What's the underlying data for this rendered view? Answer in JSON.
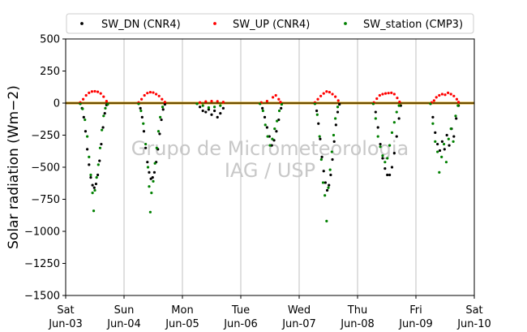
{
  "chart_data": {
    "type": "scatter",
    "title": "",
    "xlabel": "",
    "ylabel": "Solar radiation (Wm−2)",
    "ylim": [
      -1500,
      500
    ],
    "yticks": [
      -1500,
      -1250,
      -1000,
      -750,
      -500,
      -250,
      0,
      250,
      500
    ],
    "ytick_labels": [
      "−1500",
      "−1250",
      "−1000",
      "−750",
      "−500",
      "−250",
      "0",
      "250",
      "500"
    ],
    "xlim": [
      0,
      7
    ],
    "xticks": [
      0,
      1,
      2,
      3,
      4,
      5,
      6,
      7
    ],
    "xtick_labels": [
      [
        "Sat",
        "Jun-03"
      ],
      [
        "Sun",
        "Jun-04"
      ],
      [
        "Mon",
        "Jun-05"
      ],
      [
        "Tue",
        "Jun-06"
      ],
      [
        "Wed",
        "Jun-07"
      ],
      [
        "Thu",
        "Jun-08"
      ],
      [
        "Fri",
        "Jun-09"
      ],
      [
        "Sat",
        "Jun-10"
      ]
    ],
    "grid_x": true,
    "zero_line": 0,
    "legend_position": "top",
    "watermark": [
      "Grupo de Micrometeorologia",
      "IAG / USP"
    ],
    "series": [
      {
        "name": "SW_DN (CNR4)",
        "color": "#000000",
        "points": [
          [
            0.25,
            -5
          ],
          [
            0.28,
            -40
          ],
          [
            0.31,
            -110
          ],
          [
            0.34,
            -220
          ],
          [
            0.37,
            -360
          ],
          [
            0.4,
            -480
          ],
          [
            0.43,
            -580
          ],
          [
            0.46,
            -640
          ],
          [
            0.49,
            -660
          ],
          [
            0.52,
            -630
          ],
          [
            0.55,
            -560
          ],
          [
            0.58,
            -450
          ],
          [
            0.61,
            -320
          ],
          [
            0.64,
            -190
          ],
          [
            0.67,
            -80
          ],
          [
            0.7,
            -15
          ],
          [
            1.25,
            -5
          ],
          [
            1.28,
            -40
          ],
          [
            1.31,
            -110
          ],
          [
            1.34,
            -220
          ],
          [
            1.37,
            -350
          ],
          [
            1.4,
            -460
          ],
          [
            1.43,
            -540
          ],
          [
            1.46,
            -590
          ],
          [
            1.49,
            -580
          ],
          [
            1.52,
            -540
          ],
          [
            1.55,
            -460
          ],
          [
            1.58,
            -360
          ],
          [
            1.61,
            -240
          ],
          [
            1.64,
            -130
          ],
          [
            1.67,
            -50
          ],
          [
            1.7,
            -10
          ],
          [
            2.25,
            -5
          ],
          [
            2.3,
            -30
          ],
          [
            2.35,
            -60
          ],
          [
            2.4,
            -70
          ],
          [
            2.45,
            -50
          ],
          [
            2.5,
            -90
          ],
          [
            2.55,
            -60
          ],
          [
            2.6,
            -110
          ],
          [
            2.65,
            -80
          ],
          [
            2.7,
            -40
          ],
          [
            3.33,
            -5
          ],
          [
            3.37,
            -40
          ],
          [
            3.41,
            -110
          ],
          [
            3.45,
            -190
          ],
          [
            3.49,
            -260
          ],
          [
            3.53,
            -330
          ],
          [
            3.57,
            -290
          ],
          [
            3.61,
            -220
          ],
          [
            3.65,
            -130
          ],
          [
            3.69,
            -40
          ],
          [
            4.27,
            -5
          ],
          [
            4.3,
            -60
          ],
          [
            4.33,
            -160
          ],
          [
            4.36,
            -280
          ],
          [
            4.39,
            -420
          ],
          [
            4.42,
            -530
          ],
          [
            4.45,
            -620
          ],
          [
            4.48,
            -680
          ],
          [
            4.51,
            -640
          ],
          [
            4.54,
            -560
          ],
          [
            4.57,
            -440
          ],
          [
            4.6,
            -300
          ],
          [
            4.63,
            -170
          ],
          [
            4.66,
            -70
          ],
          [
            4.69,
            -10
          ],
          [
            5.27,
            -5
          ],
          [
            5.31,
            -70
          ],
          [
            5.35,
            -190
          ],
          [
            5.39,
            -320
          ],
          [
            5.43,
            -430
          ],
          [
            5.47,
            -510
          ],
          [
            5.51,
            -560
          ],
          [
            5.55,
            -560
          ],
          [
            5.59,
            -500
          ],
          [
            5.63,
            -390
          ],
          [
            5.67,
            -260
          ],
          [
            5.71,
            -120
          ],
          [
            5.74,
            -20
          ],
          [
            6.25,
            -5
          ],
          [
            6.29,
            -110
          ],
          [
            6.33,
            -230
          ],
          [
            6.37,
            -320
          ],
          [
            6.41,
            -370
          ],
          [
            6.45,
            -300
          ],
          [
            6.49,
            -360
          ],
          [
            6.53,
            -250
          ],
          [
            6.57,
            -330
          ],
          [
            6.61,
            -200
          ],
          [
            6.65,
            -260
          ],
          [
            6.69,
            -120
          ],
          [
            6.73,
            -20
          ]
        ]
      },
      {
        "name": "SW_UP (CNR4)",
        "color": "#ff0000",
        "points": [
          [
            0.25,
            5
          ],
          [
            0.3,
            30
          ],
          [
            0.35,
            60
          ],
          [
            0.4,
            80
          ],
          [
            0.45,
            90
          ],
          [
            0.5,
            92
          ],
          [
            0.55,
            88
          ],
          [
            0.6,
            75
          ],
          [
            0.65,
            50
          ],
          [
            0.7,
            15
          ],
          [
            1.25,
            5
          ],
          [
            1.3,
            30
          ],
          [
            1.35,
            60
          ],
          [
            1.4,
            78
          ],
          [
            1.45,
            85
          ],
          [
            1.5,
            82
          ],
          [
            1.55,
            70
          ],
          [
            1.6,
            55
          ],
          [
            1.65,
            30
          ],
          [
            1.7,
            8
          ],
          [
            2.3,
            5
          ],
          [
            2.4,
            12
          ],
          [
            2.5,
            15
          ],
          [
            2.6,
            14
          ],
          [
            2.7,
            8
          ],
          [
            3.35,
            5
          ],
          [
            3.45,
            15
          ],
          [
            3.55,
            45
          ],
          [
            3.6,
            60
          ],
          [
            3.65,
            30
          ],
          [
            3.68,
            8
          ],
          [
            4.27,
            5
          ],
          [
            4.32,
            30
          ],
          [
            4.37,
            55
          ],
          [
            4.42,
            75
          ],
          [
            4.47,
            90
          ],
          [
            4.52,
            85
          ],
          [
            4.57,
            70
          ],
          [
            4.62,
            50
          ],
          [
            4.67,
            20
          ],
          [
            5.28,
            5
          ],
          [
            5.33,
            35
          ],
          [
            5.38,
            60
          ],
          [
            5.43,
            70
          ],
          [
            5.48,
            75
          ],
          [
            5.53,
            78
          ],
          [
            5.58,
            80
          ],
          [
            5.63,
            70
          ],
          [
            5.68,
            40
          ],
          [
            5.72,
            10
          ],
          [
            6.27,
            5
          ],
          [
            6.31,
            20
          ],
          [
            6.35,
            45
          ],
          [
            6.4,
            60
          ],
          [
            6.45,
            70
          ],
          [
            6.5,
            65
          ],
          [
            6.55,
            80
          ],
          [
            6.6,
            70
          ],
          [
            6.65,
            55
          ],
          [
            6.7,
            30
          ],
          [
            6.73,
            8
          ]
        ]
      },
      {
        "name": "SW_station (CMP3)",
        "color": "#008000",
        "points": [
          [
            0.25,
            -5
          ],
          [
            0.29,
            -45
          ],
          [
            0.33,
            -130
          ],
          [
            0.37,
            -260
          ],
          [
            0.4,
            -420
          ],
          [
            0.43,
            -560
          ],
          [
            0.46,
            -700
          ],
          [
            0.48,
            -840
          ],
          [
            0.5,
            -680
          ],
          [
            0.53,
            -580
          ],
          [
            0.56,
            -480
          ],
          [
            0.59,
            -350
          ],
          [
            0.62,
            -210
          ],
          [
            0.65,
            -100
          ],
          [
            0.68,
            -40
          ],
          [
            0.72,
            -10
          ],
          [
            1.25,
            -5
          ],
          [
            1.29,
            -60
          ],
          [
            1.33,
            -160
          ],
          [
            1.37,
            -320
          ],
          [
            1.41,
            -500
          ],
          [
            1.43,
            -650
          ],
          [
            1.45,
            -850
          ],
          [
            1.47,
            -700
          ],
          [
            1.5,
            -610
          ],
          [
            1.53,
            -470
          ],
          [
            1.56,
            -350
          ],
          [
            1.59,
            -220
          ],
          [
            1.62,
            -110
          ],
          [
            1.66,
            -30
          ],
          [
            2.25,
            -5
          ],
          [
            2.35,
            -20
          ],
          [
            2.45,
            -35
          ],
          [
            2.55,
            -30
          ],
          [
            2.65,
            -20
          ],
          [
            3.33,
            -5
          ],
          [
            3.38,
            -60
          ],
          [
            3.42,
            -170
          ],
          [
            3.46,
            -260
          ],
          [
            3.5,
            -330
          ],
          [
            3.54,
            -280
          ],
          [
            3.58,
            -200
          ],
          [
            3.62,
            -140
          ],
          [
            3.66,
            -60
          ],
          [
            3.7,
            -10
          ],
          [
            4.27,
            -5
          ],
          [
            4.31,
            -90
          ],
          [
            4.35,
            -260
          ],
          [
            4.38,
            -440
          ],
          [
            4.41,
            -620
          ],
          [
            4.44,
            -720
          ],
          [
            4.47,
            -920
          ],
          [
            4.5,
            -660
          ],
          [
            4.53,
            -520
          ],
          [
            4.56,
            -380
          ],
          [
            4.59,
            -250
          ],
          [
            4.62,
            -120
          ],
          [
            4.66,
            -30
          ],
          [
            5.27,
            -5
          ],
          [
            5.31,
            -120
          ],
          [
            5.35,
            -260
          ],
          [
            5.39,
            -340
          ],
          [
            5.43,
            -410
          ],
          [
            5.47,
            -460
          ],
          [
            5.51,
            -430
          ],
          [
            5.55,
            -330
          ],
          [
            5.59,
            -230
          ],
          [
            5.63,
            -150
          ],
          [
            5.67,
            -70
          ],
          [
            5.71,
            -20
          ],
          [
            6.25,
            -5
          ],
          [
            6.29,
            -160
          ],
          [
            6.33,
            -300
          ],
          [
            6.37,
            -380
          ],
          [
            6.4,
            -540
          ],
          [
            6.44,
            -420
          ],
          [
            6.48,
            -320
          ],
          [
            6.52,
            -460
          ],
          [
            6.56,
            -280
          ],
          [
            6.6,
            -200
          ],
          [
            6.64,
            -300
          ],
          [
            6.68,
            -100
          ],
          [
            6.72,
            -20
          ]
        ]
      }
    ]
  }
}
